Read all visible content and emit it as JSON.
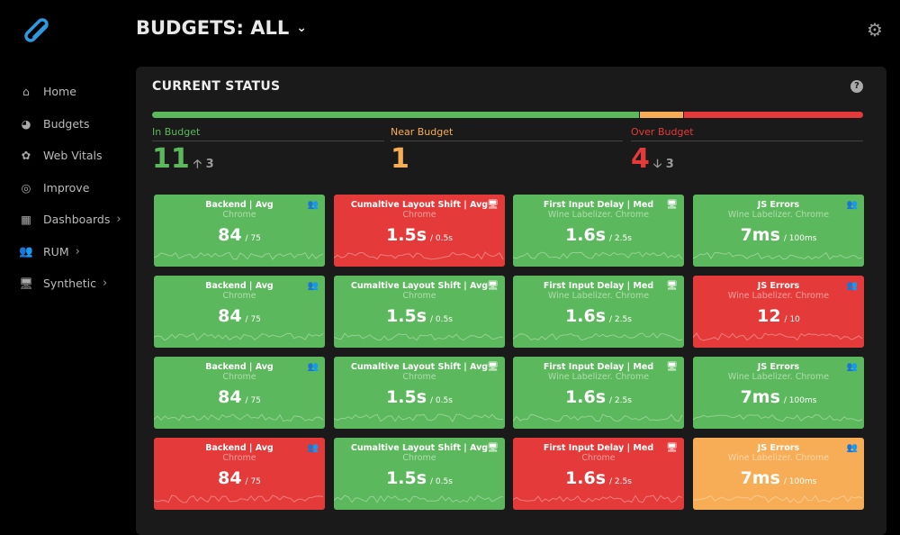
{
  "header": {
    "title": "BUDGETS: ALL"
  },
  "nav": [
    {
      "label": "Home",
      "icon": "home-icon",
      "chevron": false
    },
    {
      "label": "Budgets",
      "icon": "gauge-icon",
      "chevron": false
    },
    {
      "label": "Web Vitals",
      "icon": "pulse-icon",
      "chevron": false
    },
    {
      "label": "Improve",
      "icon": "target-icon",
      "chevron": false
    },
    {
      "label": "Dashboards",
      "icon": "dashboard-icon",
      "chevron": true
    },
    {
      "label": "RUM",
      "icon": "users-icon",
      "chevron": true
    },
    {
      "label": "Synthetic",
      "icon": "monitor-icon",
      "chevron": true
    }
  ],
  "status": {
    "title": "CURRENT STATUS",
    "in": {
      "label": "In Budget",
      "count": "11",
      "delta": "3",
      "dir": "up"
    },
    "near": {
      "label": "Near Budget",
      "count": "1"
    },
    "over": {
      "label": "Over Budget",
      "count": "4",
      "delta": "3",
      "dir": "down"
    }
  },
  "colors": {
    "green": "#5cb85c",
    "orange": "#f6ad55",
    "red": "#e53a3a"
  },
  "cards": [
    {
      "title": "Backend | Avg",
      "sub": "Chrome",
      "value": "84",
      "budget": "/ 75",
      "status": "green",
      "icon": "users"
    },
    {
      "title": "Cumaltive Layout Shift | Avg",
      "sub": "Chrome",
      "value": "1.5s",
      "budget": "/ 0.5s",
      "status": "red",
      "icon": "monitor"
    },
    {
      "title": "First Input Delay | Med",
      "sub": "Wine Labelizer. Chrome",
      "value": "1.6s",
      "budget": "/ 2.5s",
      "status": "green",
      "icon": "monitor"
    },
    {
      "title": "JS Errors",
      "sub": "Wine Labelizer. Chrome",
      "value": "7ms",
      "budget": "/ 100ms",
      "status": "green",
      "icon": "users"
    },
    {
      "title": "Backend | Avg",
      "sub": "Chrome",
      "value": "84",
      "budget": "/ 75",
      "status": "green",
      "icon": "users"
    },
    {
      "title": "Cumaltive Layout Shift | Avg",
      "sub": "Chrome",
      "value": "1.5s",
      "budget": "/ 0.5s",
      "status": "green",
      "icon": "monitor"
    },
    {
      "title": "First Input Delay | Med",
      "sub": "Wine Labelizer. Chrome",
      "value": "1.6s",
      "budget": "/ 2.5s",
      "status": "green",
      "icon": "monitor"
    },
    {
      "title": "JS Errors",
      "sub": "Wine Labelizer. Chrome",
      "value": "12",
      "budget": "/ 10",
      "status": "red",
      "icon": "users"
    },
    {
      "title": "Backend | Avg",
      "sub": "Chrome",
      "value": "84",
      "budget": "/ 75",
      "status": "green",
      "icon": "users"
    },
    {
      "title": "Cumaltive Layout Shift | Avg",
      "sub": "Chrome",
      "value": "1.5s",
      "budget": "/ 0.5s",
      "status": "green",
      "icon": "monitor"
    },
    {
      "title": "First Input Delay | Med",
      "sub": "Wine Labelizer. Chrome",
      "value": "1.6s",
      "budget": "/ 2.5s",
      "status": "green",
      "icon": "monitor"
    },
    {
      "title": "JS Errors",
      "sub": "Wine Labelizer. Chrome",
      "value": "7ms",
      "budget": "/ 100ms",
      "status": "green",
      "icon": "users"
    },
    {
      "title": "Backend | Avg",
      "sub": "Chrome",
      "value": "84",
      "budget": "/ 75",
      "status": "red",
      "icon": "users"
    },
    {
      "title": "Cumaltive Layout Shift | Avg",
      "sub": "Chrome",
      "value": "1.5s",
      "budget": "/ 0.5s",
      "status": "green",
      "icon": "monitor"
    },
    {
      "title": "First Input Delay | Med",
      "sub": "Chrome",
      "value": "1.6s",
      "budget": "/ 2.5s",
      "status": "red",
      "icon": "monitor"
    },
    {
      "title": "JS Errors",
      "sub": "Wine Labelizer. Chrome",
      "value": "7ms",
      "budget": "/ 100ms",
      "status": "orange",
      "icon": "users"
    }
  ]
}
